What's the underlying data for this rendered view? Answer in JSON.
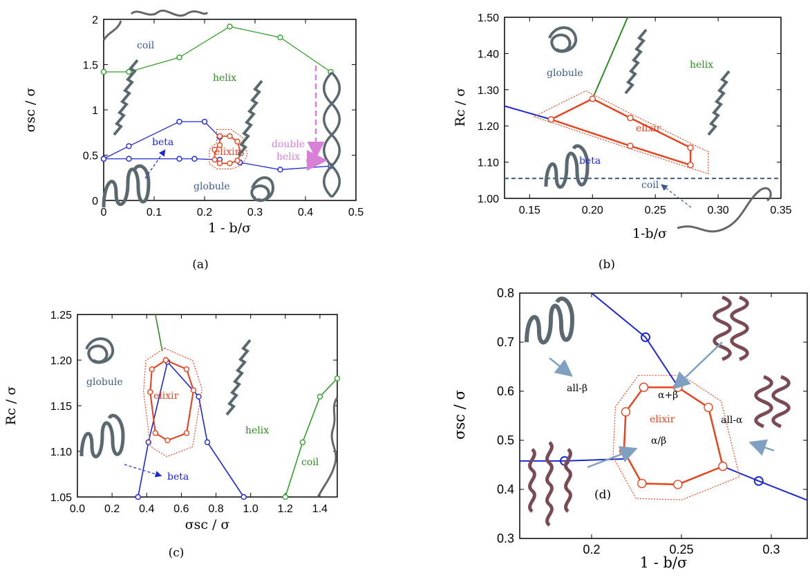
{
  "colors": {
    "coil": "#33a02c",
    "helix": "#2e8b22",
    "beta": "#1a27d6",
    "globule": "#3c5a8a",
    "elixir": "#e8431e",
    "double_helix": "#d87fd8",
    "arrow": "#7fa0c0"
  },
  "chart_data": [
    {
      "panel": "(a)",
      "type": "line",
      "xlabel": "1 - b/σ",
      "ylabel": "σsc / σ",
      "xlim": [
        0,
        0.5
      ],
      "ylim": [
        0,
        2
      ],
      "xticks": [
        "0",
        "0.1",
        "0.2",
        "0.3",
        "0.4",
        "0.5"
      ],
      "yticks": [
        "0",
        "0.5",
        "1",
        "1.5",
        "2"
      ],
      "series": [
        {
          "kind": "coil-helix",
          "x": [
            0,
            0.05,
            0.15,
            0.25,
            0.35,
            0.45
          ],
          "y": [
            1.42,
            1.42,
            1.58,
            1.92,
            1.8,
            1.42
          ]
        },
        {
          "kind": "helix-beta",
          "x": [
            0,
            0.05,
            0.15,
            0.2,
            0.23
          ],
          "y": [
            0.46,
            0.6,
            0.87,
            0.87,
            0.7
          ]
        },
        {
          "kind": "beta-globule",
          "x": [
            0,
            0.05,
            0.15,
            0.18,
            0.23
          ],
          "y": [
            0.46,
            0.46,
            0.46,
            0.46,
            0.45
          ]
        },
        {
          "kind": "globule-doublehelix",
          "x": [
            0.27,
            0.35,
            0.45
          ],
          "y": [
            0.42,
            0.34,
            0.38
          ]
        },
        {
          "kind": "elixir",
          "x": [
            0.23,
            0.25,
            0.265,
            0.272,
            0.265,
            0.25,
            0.23,
            0.22,
            0.22,
            0.23
          ],
          "y": [
            0.71,
            0.71,
            0.65,
            0.52,
            0.44,
            0.41,
            0.41,
            0.45,
            0.56,
            0.61
          ]
        }
      ],
      "region_labels": [
        "coil",
        "helix",
        "beta",
        "globule",
        "elixir",
        "double",
        "helix"
      ]
    },
    {
      "panel": "(b)",
      "type": "line",
      "xlabel": "1-b/σ",
      "ylabel": "Rc / σ",
      "xlim": [
        0.13,
        0.35
      ],
      "ylim": [
        1.0,
        1.5
      ],
      "xticks": [
        "0.15",
        "0.20",
        "0.25",
        "0.30",
        "0.35"
      ],
      "yticks": [
        "1.00",
        "1.10",
        "1.20",
        "1.30",
        "1.40",
        "1.50"
      ],
      "series": [
        {
          "kind": "globule-beta",
          "x": [
            0.13,
            0.167
          ],
          "y": [
            1.255,
            1.218
          ]
        },
        {
          "kind": "helix",
          "x": [
            0.2,
            0.228
          ],
          "y": [
            1.275,
            1.5
          ]
        },
        {
          "kind": "elixir",
          "x": [
            0.167,
            0.2,
            0.23,
            0.278,
            0.278,
            0.23,
            0.167
          ],
          "y": [
            1.218,
            1.275,
            1.222,
            1.14,
            1.092,
            1.145,
            1.218
          ]
        },
        {
          "kind": "coil-limit",
          "x": [
            0.13,
            0.35
          ],
          "y": [
            1.055,
            1.055
          ]
        }
      ],
      "region_labels": [
        "globule",
        "helix",
        "elixir",
        "beta",
        "coil"
      ]
    },
    {
      "panel": "(c)",
      "type": "line",
      "xlabel": "σsc / σ",
      "ylabel": "Rc / σ",
      "xlim": [
        0,
        1.5
      ],
      "ylim": [
        1.05,
        1.25
      ],
      "xticks": [
        "0.0",
        "0.2",
        "0.4",
        "0.6",
        "0.8",
        "1.0",
        "1.2",
        "1.4"
      ],
      "yticks": [
        "1.05",
        "1.10",
        "1.15",
        "1.20",
        "1.25"
      ],
      "series": [
        {
          "kind": "helix-globule",
          "x": [
            0.45,
            0.49
          ],
          "y": [
            1.25,
            1.21
          ]
        },
        {
          "kind": "beta",
          "x": [
            0.35,
            0.41,
            0.52,
            0.7,
            0.75,
            0.96
          ],
          "y": [
            1.05,
            1.11,
            1.198,
            1.16,
            1.11,
            1.05
          ]
        },
        {
          "kind": "elixir",
          "x": [
            0.51,
            0.63,
            0.67,
            0.63,
            0.52,
            0.45,
            0.42,
            0.43,
            0.51
          ],
          "y": [
            1.2,
            1.19,
            1.167,
            1.12,
            1.112,
            1.12,
            1.165,
            1.19,
            1.2
          ]
        },
        {
          "kind": "coil",
          "x": [
            1.2,
            1.3,
            1.4,
            1.5
          ],
          "y": [
            1.05,
            1.11,
            1.16,
            1.18
          ]
        }
      ],
      "region_labels": [
        "globule",
        "elixir",
        "beta",
        "helix",
        "coil"
      ]
    },
    {
      "panel": "(d)",
      "type": "line",
      "xlabel": "1 - b/σ",
      "ylabel": "σsc / σ",
      "xlim": [
        0.16,
        0.32
      ],
      "ylim": [
        0.3,
        0.8
      ],
      "xticks": [
        "0.2",
        "0.25",
        "0.3"
      ],
      "yticks": [
        "0.3",
        "0.4",
        "0.5",
        "0.6",
        "0.7",
        "0.8"
      ],
      "series": [
        {
          "kind": "blue-upper",
          "x": [
            0.2,
            0.23,
            0.248
          ],
          "y": [
            0.8,
            0.71,
            0.61
          ]
        },
        {
          "kind": "blue-left",
          "x": [
            0.16,
            0.185,
            0.218
          ],
          "y": [
            0.458,
            0.458,
            0.462
          ]
        },
        {
          "kind": "blue-right",
          "x": [
            0.273,
            0.293,
            0.32
          ],
          "y": [
            0.447,
            0.417,
            0.378
          ]
        },
        {
          "kind": "elixir",
          "x": [
            0.229,
            0.248,
            0.265,
            0.273,
            0.248,
            0.228,
            0.218,
            0.219,
            0.229
          ],
          "y": [
            0.608,
            0.608,
            0.567,
            0.447,
            0.41,
            0.412,
            0.478,
            0.558,
            0.608
          ]
        }
      ],
      "region_labels": [
        "all-β",
        "α+β",
        "elixir",
        "all-α",
        "α/β"
      ]
    }
  ],
  "captions": [
    "(a)",
    "(b)",
    "(c)",
    "(d)"
  ]
}
